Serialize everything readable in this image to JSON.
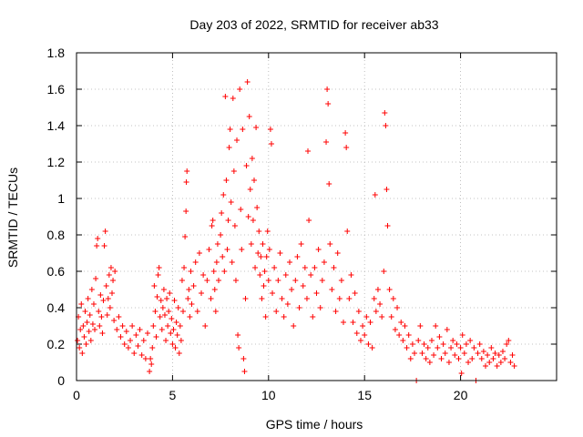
{
  "chart_data": {
    "type": "scatter",
    "title": "Day 203 of 2022, SRMTID for receiver ab33",
    "xlabel": "GPS time / hours",
    "ylabel": "SRMTID / TECUs",
    "xlim": [
      0,
      25
    ],
    "ylim": [
      0,
      1.8
    ],
    "xticks": [
      0,
      5,
      10,
      15,
      20
    ],
    "xtick_labels": [
      "0",
      "5",
      "10",
      "15",
      "20"
    ],
    "yticks": [
      0,
      0.2,
      0.4,
      0.6,
      0.8,
      1,
      1.2,
      1.4,
      1.6,
      1.8
    ],
    "ytick_labels": [
      "0",
      "0.2",
      "0.4",
      "0.6",
      "0.8",
      "1",
      "1.2",
      "1.4",
      "1.6",
      "1.8"
    ],
    "grid": true,
    "marker": "+",
    "color": "#ff0000",
    "series": [
      {
        "name": "SRMTID",
        "points": [
          [
            0.05,
            0.22
          ],
          [
            0.1,
            0.35
          ],
          [
            0.15,
            0.18
          ],
          [
            0.2,
            0.28
          ],
          [
            0.25,
            0.42
          ],
          [
            0.3,
            0.15
          ],
          [
            0.35,
            0.3
          ],
          [
            0.4,
            0.24
          ],
          [
            0.45,
            0.38
          ],
          [
            0.5,
            0.2
          ],
          [
            0.55,
            0.32
          ],
          [
            0.6,
            0.45
          ],
          [
            0.65,
            0.27
          ],
          [
            0.7,
            0.36
          ],
          [
            0.75,
            0.22
          ],
          [
            0.8,
            0.5
          ],
          [
            0.85,
            0.31
          ],
          [
            0.9,
            0.42
          ],
          [
            0.95,
            0.28
          ],
          [
            1.0,
            0.56
          ],
          [
            1.05,
            0.74
          ],
          [
            1.1,
            0.78
          ],
          [
            1.15,
            0.38
          ],
          [
            1.2,
            0.3
          ],
          [
            1.25,
            0.47
          ],
          [
            1.3,
            0.35
          ],
          [
            1.35,
            0.26
          ],
          [
            1.4,
            0.44
          ],
          [
            1.45,
            0.74
          ],
          [
            1.5,
            0.82
          ],
          [
            1.55,
            0.52
          ],
          [
            1.6,
            0.36
          ],
          [
            1.65,
            0.45
          ],
          [
            1.7,
            0.58
          ],
          [
            1.75,
            0.4
          ],
          [
            1.8,
            0.62
          ],
          [
            1.85,
            0.48
          ],
          [
            1.9,
            0.55
          ],
          [
            1.95,
            0.33
          ],
          [
            2.0,
            0.6
          ],
          [
            2.1,
            0.28
          ],
          [
            2.2,
            0.35
          ],
          [
            2.3,
            0.24
          ],
          [
            2.4,
            0.3
          ],
          [
            2.5,
            0.2
          ],
          [
            2.6,
            0.27
          ],
          [
            2.7,
            0.18
          ],
          [
            2.8,
            0.22
          ],
          [
            2.9,
            0.3
          ],
          [
            3.0,
            0.15
          ],
          [
            3.1,
            0.25
          ],
          [
            3.2,
            0.19
          ],
          [
            3.3,
            0.28
          ],
          [
            3.4,
            0.14
          ],
          [
            3.5,
            0.22
          ],
          [
            3.6,
            0.12
          ],
          [
            3.7,
            0.26
          ],
          [
            3.8,
            0.05
          ],
          [
            3.85,
            0.12
          ],
          [
            3.9,
            0.09
          ],
          [
            3.95,
            0.18
          ],
          [
            4.0,
            0.3
          ],
          [
            4.05,
            0.52
          ],
          [
            4.1,
            0.38
          ],
          [
            4.15,
            0.24
          ],
          [
            4.2,
            0.46
          ],
          [
            4.25,
            0.58
          ],
          [
            4.3,
            0.62
          ],
          [
            4.35,
            0.35
          ],
          [
            4.4,
            0.44
          ],
          [
            4.45,
            0.28
          ],
          [
            4.5,
            0.4
          ],
          [
            4.55,
            0.5
          ],
          [
            4.6,
            0.36
          ],
          [
            4.65,
            0.22
          ],
          [
            4.7,
            0.45
          ],
          [
            4.75,
            0.3
          ],
          [
            4.8,
            0.38
          ],
          [
            4.85,
            0.48
          ],
          [
            4.9,
            0.26
          ],
          [
            4.95,
            0.34
          ],
          [
            5.0,
            0.2
          ],
          [
            5.05,
            0.28
          ],
          [
            5.1,
            0.44
          ],
          [
            5.15,
            0.18
          ],
          [
            5.2,
            0.32
          ],
          [
            5.25,
            0.25
          ],
          [
            5.3,
            0.4
          ],
          [
            5.35,
            0.15
          ],
          [
            5.4,
            0.3
          ],
          [
            5.45,
            0.22
          ],
          [
            5.5,
            0.55
          ],
          [
            5.55,
            0.38
          ],
          [
            5.6,
            0.62
          ],
          [
            5.65,
            0.79
          ],
          [
            5.7,
            0.93
          ],
          [
            5.72,
            1.09
          ],
          [
            5.75,
            1.15
          ],
          [
            5.8,
            0.45
          ],
          [
            5.85,
            0.5
          ],
          [
            5.9,
            0.35
          ],
          [
            5.95,
            0.6
          ],
          [
            6.0,
            0.42
          ],
          [
            6.1,
            0.52
          ],
          [
            6.2,
            0.65
          ],
          [
            6.3,
            0.38
          ],
          [
            6.4,
            0.7
          ],
          [
            6.5,
            0.48
          ],
          [
            6.6,
            0.58
          ],
          [
            6.7,
            0.3
          ],
          [
            6.8,
            0.55
          ],
          [
            6.9,
            0.72
          ],
          [
            7.0,
            0.45
          ],
          [
            7.05,
            0.85
          ],
          [
            7.1,
            0.88
          ],
          [
            7.15,
            0.6
          ],
          [
            7.2,
            0.5
          ],
          [
            7.25,
            0.38
          ],
          [
            7.3,
            0.65
          ],
          [
            7.35,
            0.75
          ],
          [
            7.4,
            0.55
          ],
          [
            7.5,
            0.8
          ],
          [
            7.55,
            0.92
          ],
          [
            7.6,
            0.68
          ],
          [
            7.65,
            1.02
          ],
          [
            7.7,
            0.6
          ],
          [
            7.75,
            1.56
          ],
          [
            7.8,
            1.1
          ],
          [
            7.85,
            0.72
          ],
          [
            7.9,
            0.88
          ],
          [
            7.95,
            1.28
          ],
          [
            8.0,
            1.38
          ],
          [
            8.05,
            0.98
          ],
          [
            8.1,
            0.65
          ],
          [
            8.15,
            1.55
          ],
          [
            8.2,
            1.15
          ],
          [
            8.25,
            0.85
          ],
          [
            8.3,
            0.55
          ],
          [
            8.35,
            1.32
          ],
          [
            8.4,
            0.25
          ],
          [
            8.45,
            0.18
          ],
          [
            8.5,
            1.6
          ],
          [
            8.55,
            0.94
          ],
          [
            8.6,
            0.72
          ],
          [
            8.65,
            1.38
          ],
          [
            8.7,
            0.12
          ],
          [
            8.75,
            0.05
          ],
          [
            8.8,
            0.45
          ],
          [
            8.85,
            1.18
          ],
          [
            8.9,
            1.64
          ],
          [
            8.95,
            0.9
          ],
          [
            9.0,
            1.45
          ],
          [
            9.05,
            1.05
          ],
          [
            9.1,
            0.75
          ],
          [
            9.15,
            1.22
          ],
          [
            9.2,
            0.88
          ],
          [
            9.25,
            1.1
          ],
          [
            9.3,
            0.62
          ],
          [
            9.35,
            1.39
          ],
          [
            9.4,
            0.95
          ],
          [
            9.45,
            0.7
          ],
          [
            9.5,
            0.82
          ],
          [
            9.55,
            0.58
          ],
          [
            9.6,
            0.68
          ],
          [
            9.65,
            0.45
          ],
          [
            9.7,
            0.75
          ],
          [
            9.75,
            0.52
          ],
          [
            9.8,
            0.6
          ],
          [
            9.85,
            0.35
          ],
          [
            9.9,
            0.68
          ],
          [
            9.95,
            0.82
          ],
          [
            10.0,
            0.55
          ],
          [
            10.05,
            0.72
          ],
          [
            10.1,
            1.38
          ],
          [
            10.15,
            1.3
          ],
          [
            10.2,
            0.48
          ],
          [
            10.3,
            0.62
          ],
          [
            10.4,
            0.38
          ],
          [
            10.5,
            0.55
          ],
          [
            10.6,
            0.7
          ],
          [
            10.7,
            0.45
          ],
          [
            10.8,
            0.35
          ],
          [
            10.9,
            0.58
          ],
          [
            11.0,
            0.42
          ],
          [
            11.1,
            0.65
          ],
          [
            11.2,
            0.5
          ],
          [
            11.3,
            0.3
          ],
          [
            11.4,
            0.55
          ],
          [
            11.5,
            0.68
          ],
          [
            11.6,
            0.4
          ],
          [
            11.7,
            0.75
          ],
          [
            11.8,
            0.52
          ],
          [
            11.9,
            0.62
          ],
          [
            12.0,
            0.45
          ],
          [
            12.05,
            1.26
          ],
          [
            12.1,
            0.88
          ],
          [
            12.2,
            0.58
          ],
          [
            12.3,
            0.35
          ],
          [
            12.4,
            0.62
          ],
          [
            12.5,
            0.48
          ],
          [
            12.6,
            0.72
          ],
          [
            12.7,
            0.4
          ],
          [
            12.8,
            0.55
          ],
          [
            12.9,
            0.65
          ],
          [
            13.0,
            1.31
          ],
          [
            13.05,
            1.6
          ],
          [
            13.1,
            1.52
          ],
          [
            13.15,
            1.08
          ],
          [
            13.2,
            0.75
          ],
          [
            13.3,
            0.5
          ],
          [
            13.4,
            0.62
          ],
          [
            13.5,
            0.38
          ],
          [
            13.6,
            0.7
          ],
          [
            13.7,
            0.45
          ],
          [
            13.8,
            0.55
          ],
          [
            13.9,
            0.32
          ],
          [
            14.0,
            1.36
          ],
          [
            14.05,
            1.28
          ],
          [
            14.1,
            0.82
          ],
          [
            14.2,
            0.45
          ],
          [
            14.3,
            0.58
          ],
          [
            14.4,
            0.32
          ],
          [
            14.5,
            0.48
          ],
          [
            14.6,
            0.26
          ],
          [
            14.7,
            0.38
          ],
          [
            14.8,
            0.22
          ],
          [
            14.9,
            0.3
          ],
          [
            15.0,
            0.25
          ],
          [
            15.1,
            0.35
          ],
          [
            15.2,
            0.2
          ],
          [
            15.3,
            0.32
          ],
          [
            15.4,
            0.18
          ],
          [
            15.5,
            0.45
          ],
          [
            15.55,
            1.02
          ],
          [
            15.6,
            0.38
          ],
          [
            15.7,
            0.5
          ],
          [
            15.8,
            0.42
          ],
          [
            15.9,
            0.35
          ],
          [
            16.0,
            0.6
          ],
          [
            16.05,
            1.47
          ],
          [
            16.1,
            1.4
          ],
          [
            16.15,
            1.05
          ],
          [
            16.2,
            0.85
          ],
          [
            16.3,
            0.5
          ],
          [
            16.4,
            0.35
          ],
          [
            16.5,
            0.45
          ],
          [
            16.6,
            0.28
          ],
          [
            16.7,
            0.4
          ],
          [
            16.8,
            0.25
          ],
          [
            16.9,
            0.32
          ],
          [
            17.0,
            0.22
          ],
          [
            17.1,
            0.3
          ],
          [
            17.2,
            0.18
          ],
          [
            17.3,
            0.25
          ],
          [
            17.4,
            0.12
          ],
          [
            17.5,
            0.2
          ],
          [
            17.6,
            0.15
          ],
          [
            17.7,
            0.0
          ],
          [
            17.8,
            0.22
          ],
          [
            17.9,
            0.3
          ],
          [
            18.0,
            0.15
          ],
          [
            18.1,
            0.2
          ],
          [
            18.2,
            0.12
          ],
          [
            18.3,
            0.18
          ],
          [
            18.4,
            0.1
          ],
          [
            18.5,
            0.22
          ],
          [
            18.6,
            0.14
          ],
          [
            18.7,
            0.3
          ],
          [
            18.8,
            0.18
          ],
          [
            18.9,
            0.24
          ],
          [
            19.0,
            0.12
          ],
          [
            19.1,
            0.2
          ],
          [
            19.2,
            0.15
          ],
          [
            19.3,
            0.28
          ],
          [
            19.4,
            0.1
          ],
          [
            19.5,
            0.18
          ],
          [
            19.6,
            0.22
          ],
          [
            19.7,
            0.14
          ],
          [
            19.8,
            0.2
          ],
          [
            19.9,
            0.12
          ],
          [
            20.0,
            0.18
          ],
          [
            20.05,
            0.04
          ],
          [
            20.1,
            0.25
          ],
          [
            20.2,
            0.15
          ],
          [
            20.3,
            0.2
          ],
          [
            20.4,
            0.1
          ],
          [
            20.5,
            0.22
          ],
          [
            20.6,
            0.12
          ],
          [
            20.7,
            0.18
          ],
          [
            20.8,
            0.0
          ],
          [
            20.9,
            0.15
          ],
          [
            21.0,
            0.2
          ],
          [
            21.1,
            0.12
          ],
          [
            21.2,
            0.16
          ],
          [
            21.3,
            0.08
          ],
          [
            21.4,
            0.14
          ],
          [
            21.5,
            0.1
          ],
          [
            21.6,
            0.18
          ],
          [
            21.7,
            0.12
          ],
          [
            21.8,
            0.15
          ],
          [
            21.9,
            0.08
          ],
          [
            22.0,
            0.14
          ],
          [
            22.1,
            0.1
          ],
          [
            22.2,
            0.16
          ],
          [
            22.3,
            0.12
          ],
          [
            22.4,
            0.2
          ],
          [
            22.5,
            0.22
          ],
          [
            22.6,
            0.1
          ],
          [
            22.7,
            0.14
          ],
          [
            22.8,
            0.08
          ]
        ]
      }
    ]
  }
}
